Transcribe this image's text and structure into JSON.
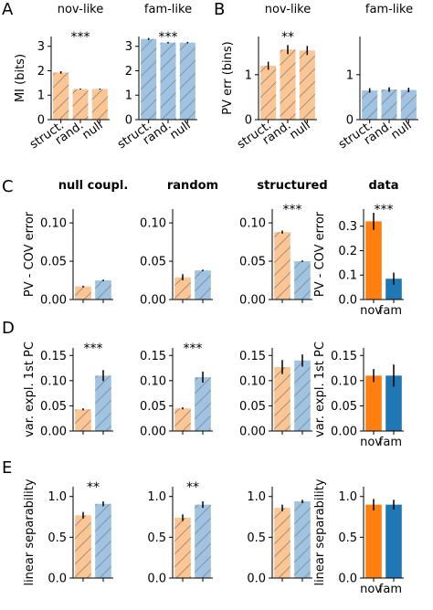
{
  "panel_letters": [
    "A",
    "B",
    "C",
    "D",
    "E"
  ],
  "colors": {
    "nov_light": "#fcc592",
    "fam_light": "#9fc3e2",
    "nov_dark": "#ff7f0e",
    "fam_dark": "#1f77b4",
    "hatch": "#8c8c8c",
    "error_bar": "#000000"
  },
  "chart_data": [
    {
      "type": "bar",
      "panel": "A",
      "title": "nov-like",
      "ylabel": "MI (bits)",
      "categories": [
        "struct.",
        "rand.",
        "null"
      ],
      "values": [
        1.93,
        1.25,
        1.25
      ],
      "errors": [
        0.05,
        0.02,
        0.02
      ],
      "bar_colors": [
        "nov_light",
        "nov_light",
        "nov_light"
      ],
      "hatched": true,
      "ylim": [
        0,
        3.4
      ],
      "yticks": [
        0,
        1,
        2,
        3
      ],
      "ytick_labels": [
        "0",
        "1",
        "2",
        "3"
      ],
      "annotation": "***",
      "grid": false
    },
    {
      "type": "bar",
      "panel": "A",
      "title": "fam-like",
      "ylabel": "",
      "categories": [
        "struct.",
        "rand.",
        "null"
      ],
      "values": [
        3.3,
        3.15,
        3.15
      ],
      "errors": [
        0.04,
        0.03,
        0.03
      ],
      "bar_colors": [
        "fam_light",
        "fam_light",
        "fam_light"
      ],
      "hatched": true,
      "ylim": [
        0,
        3.4
      ],
      "yticks": [
        0,
        1,
        2,
        3
      ],
      "ytick_labels": [
        "0",
        "1",
        "2",
        "3"
      ],
      "annotation": "***",
      "grid": false
    },
    {
      "type": "bar",
      "panel": "B",
      "title": "nov-like",
      "ylabel": "PV err (bins)",
      "categories": [
        "struct.",
        "rand.",
        "null"
      ],
      "values": [
        1.2,
        1.56,
        1.54
      ],
      "errors": [
        0.09,
        0.1,
        0.1
      ],
      "bar_colors": [
        "nov_light",
        "nov_light",
        "nov_light"
      ],
      "hatched": true,
      "ylim": [
        0,
        1.85
      ],
      "yticks": [
        0,
        1
      ],
      "ytick_labels": [
        "0",
        "1"
      ],
      "annotation": "**",
      "grid": false
    },
    {
      "type": "bar",
      "panel": "B",
      "title": "fam-like",
      "ylabel": "",
      "categories": [
        "struct.",
        "rand.",
        "null"
      ],
      "values": [
        0.65,
        0.67,
        0.66
      ],
      "errors": [
        0.05,
        0.05,
        0.05
      ],
      "bar_colors": [
        "fam_light",
        "fam_light",
        "fam_light"
      ],
      "hatched": true,
      "ylim": [
        0,
        1.85
      ],
      "yticks": [
        0,
        1
      ],
      "ytick_labels": [
        "0",
        "1"
      ],
      "annotation": "",
      "grid": false
    },
    {
      "type": "bar",
      "panel": "C",
      "title": "null coupl.",
      "ylabel": "PV - COV error",
      "categories": [
        "",
        ""
      ],
      "values": [
        0.017,
        0.025
      ],
      "errors": [
        0.001,
        0.001
      ],
      "bar_colors": [
        "nov_light",
        "fam_light"
      ],
      "hatched": true,
      "ylim": [
        0,
        0.118
      ],
      "yticks": [
        0,
        0.05,
        0.1
      ],
      "ytick_labels": [
        "0.00",
        "0.05",
        "0.10"
      ],
      "annotation": "",
      "grid": false
    },
    {
      "type": "bar",
      "panel": "C",
      "title": "random",
      "ylabel": "",
      "categories": [
        "",
        ""
      ],
      "values": [
        0.029,
        0.038
      ],
      "errors": [
        0.004,
        0.001
      ],
      "bar_colors": [
        "nov_light",
        "fam_light"
      ],
      "hatched": true,
      "ylim": [
        0,
        0.118
      ],
      "yticks": [
        0,
        0.05,
        0.1
      ],
      "ytick_labels": [
        "0.00",
        "0.05",
        "0.10"
      ],
      "annotation": "",
      "grid": false
    },
    {
      "type": "bar",
      "panel": "C",
      "title": "structured",
      "ylabel": "",
      "categories": [
        "",
        ""
      ],
      "values": [
        0.088,
        0.05
      ],
      "errors": [
        0.002,
        0.001
      ],
      "bar_colors": [
        "nov_light",
        "fam_light"
      ],
      "hatched": true,
      "ylim": [
        0,
        0.118
      ],
      "yticks": [
        0,
        0.05,
        0.1
      ],
      "ytick_labels": [
        "0.00",
        "0.05",
        "0.10"
      ],
      "annotation": "***",
      "grid": false
    },
    {
      "type": "bar",
      "panel": "C",
      "title": "data",
      "ylabel": "PV - COV error",
      "categories": [
        "nov",
        "fam"
      ],
      "values": [
        0.32,
        0.085
      ],
      "errors": [
        0.035,
        0.025
      ],
      "bar_colors": [
        "nov_dark",
        "fam_dark"
      ],
      "hatched": false,
      "ylim": [
        0,
        0.37
      ],
      "yticks": [
        0,
        0.1,
        0.2,
        0.3
      ],
      "ytick_labels": [
        "0.0",
        "0.1",
        "0.2",
        "0.3"
      ],
      "annotation": "***",
      "grid": false
    },
    {
      "type": "bar",
      "panel": "D",
      "title": "",
      "ylabel": "var. expl. 1st PC",
      "categories": [
        "",
        ""
      ],
      "values": [
        0.043,
        0.11
      ],
      "errors": [
        0.002,
        0.011
      ],
      "bar_colors": [
        "nov_light",
        "fam_light"
      ],
      "hatched": true,
      "ylim": [
        0,
        0.165
      ],
      "yticks": [
        0,
        0.05,
        0.1,
        0.15
      ],
      "ytick_labels": [
        "0.00",
        "0.05",
        "0.10",
        "0.15"
      ],
      "annotation": "***",
      "grid": false
    },
    {
      "type": "bar",
      "panel": "D",
      "title": "",
      "ylabel": "",
      "categories": [
        "",
        ""
      ],
      "values": [
        0.045,
        0.107
      ],
      "errors": [
        0.002,
        0.011
      ],
      "bar_colors": [
        "nov_light",
        "fam_light"
      ],
      "hatched": true,
      "ylim": [
        0,
        0.165
      ],
      "yticks": [
        0,
        0.05,
        0.1,
        0.15
      ],
      "ytick_labels": [
        "0.00",
        "0.05",
        "0.10",
        "0.15"
      ],
      "annotation": "***",
      "grid": false
    },
    {
      "type": "bar",
      "panel": "D",
      "title": "",
      "ylabel": "",
      "categories": [
        "",
        ""
      ],
      "values": [
        0.127,
        0.14
      ],
      "errors": [
        0.014,
        0.012
      ],
      "bar_colors": [
        "nov_light",
        "fam_light"
      ],
      "hatched": true,
      "ylim": [
        0,
        0.165
      ],
      "yticks": [
        0,
        0.05,
        0.1,
        0.15
      ],
      "ytick_labels": [
        "0.00",
        "0.05",
        "0.10",
        "0.15"
      ],
      "annotation": "",
      "grid": false
    },
    {
      "type": "bar",
      "panel": "D",
      "title": "",
      "ylabel": "var. expl. 1st PC",
      "categories": [
        "nov",
        "fam"
      ],
      "values": [
        0.11,
        0.11
      ],
      "errors": [
        0.013,
        0.022
      ],
      "bar_colors": [
        "nov_dark",
        "fam_dark"
      ],
      "hatched": false,
      "ylim": [
        0,
        0.165
      ],
      "yticks": [
        0,
        0.05,
        0.1,
        0.15
      ],
      "ytick_labels": [
        "0.00",
        "0.05",
        "0.10",
        "0.15"
      ],
      "annotation": "",
      "grid": false
    },
    {
      "type": "bar",
      "panel": "E",
      "title": "",
      "ylabel": "linear separability",
      "categories": [
        "",
        ""
      ],
      "values": [
        0.77,
        0.91
      ],
      "errors": [
        0.04,
        0.03
      ],
      "bar_colors": [
        "nov_light",
        "fam_light"
      ],
      "hatched": true,
      "ylim": [
        0,
        1.12
      ],
      "yticks": [
        0,
        0.5,
        1
      ],
      "ytick_labels": [
        "0.0",
        "0.5",
        "1.0"
      ],
      "annotation": "**",
      "grid": false
    },
    {
      "type": "bar",
      "panel": "E",
      "title": "",
      "ylabel": "",
      "categories": [
        "",
        ""
      ],
      "values": [
        0.74,
        0.9
      ],
      "errors": [
        0.04,
        0.04
      ],
      "bar_colors": [
        "nov_light",
        "fam_light"
      ],
      "hatched": true,
      "ylim": [
        0,
        1.12
      ],
      "yticks": [
        0,
        0.5,
        1
      ],
      "ytick_labels": [
        "0.0",
        "0.5",
        "1.0"
      ],
      "annotation": "**",
      "grid": false
    },
    {
      "type": "bar",
      "panel": "E",
      "title": "",
      "ylabel": "",
      "categories": [
        "",
        ""
      ],
      "values": [
        0.86,
        0.94
      ],
      "errors": [
        0.04,
        0.02
      ],
      "bar_colors": [
        "nov_light",
        "fam_light"
      ],
      "hatched": true,
      "ylim": [
        0,
        1.12
      ],
      "yticks": [
        0,
        0.5,
        1
      ],
      "ytick_labels": [
        "0.0",
        "0.5",
        "1.0"
      ],
      "annotation": "",
      "grid": false
    },
    {
      "type": "bar",
      "panel": "E",
      "title": "",
      "ylabel": "linear separability",
      "categories": [
        "nov",
        "fam"
      ],
      "values": [
        0.9,
        0.9
      ],
      "errors": [
        0.07,
        0.06
      ],
      "bar_colors": [
        "nov_dark",
        "fam_dark"
      ],
      "hatched": false,
      "ylim": [
        0,
        1.12
      ],
      "yticks": [
        0,
        0.5,
        1
      ],
      "ytick_labels": [
        "0.0",
        "0.5",
        "1.0"
      ],
      "annotation": "",
      "grid": false
    }
  ]
}
